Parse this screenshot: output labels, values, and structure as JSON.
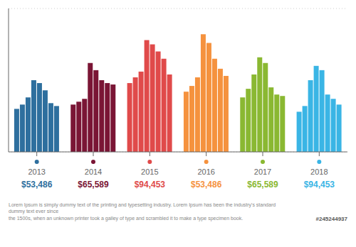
{
  "chart_data": {
    "type": "bar",
    "categories": [
      "2013",
      "2014",
      "2015",
      "2016",
      "2017",
      "2018"
    ],
    "colors": [
      "#2e6f9e",
      "#7a1535",
      "#e04a4a",
      "#f5923e",
      "#8ab832",
      "#3ab5e5"
    ],
    "series": [
      {
        "values": [
          30,
          33,
          48,
          42,
          38,
          28
        ]
      },
      {
        "values": [
          33,
          35,
          52,
          46,
          44,
          32
        ]
      },
      {
        "values": [
          38,
          37,
          56,
          52,
          54,
          50
        ]
      },
      {
        "values": [
          50,
          62,
          78,
          82,
          66,
          60
        ]
      },
      {
        "values": [
          48,
          57,
          75,
          76,
          62,
          57
        ]
      },
      {
        "values": [
          43,
          50,
          70,
          65,
          45,
          40
        ]
      },
      {
        "values": [
          34,
          48,
          65,
          58,
          40,
          37
        ]
      },
      {
        "values": [
          32,
          47,
          54,
          53,
          39,
          33
        ]
      }
    ],
    "ylim": [
      0,
      100
    ],
    "yticks": [
      0,
      20,
      40,
      60,
      80,
      100
    ],
    "grid": true,
    "tick_labels": "x",
    "annotations": [
      {
        "text": "$53,486",
        "category": "2013",
        "color": "#2e6f9e"
      },
      {
        "text": "$65,589",
        "category": "2014",
        "color": "#7a1535"
      },
      {
        "text": "$94,453",
        "category": "2015",
        "color": "#e04a4a"
      },
      {
        "text": "$53,486",
        "category": "2016",
        "color": "#f5923e"
      },
      {
        "text": "$65,589",
        "category": "2017",
        "color": "#8ab832"
      },
      {
        "text": "$94,453",
        "category": "2018",
        "color": "#3ab5e5"
      },
      {
        "text": "Lorem Ipsum is simply dummy text of the printing and typesetting industry. Lorem Ipsum has been the industry's standard dummy text ever since\nthe 1500s, when an unknown printer took a galley of type and scrambled it to make a type specimen book."
      },
      {
        "text": "#245244937"
      }
    ]
  }
}
